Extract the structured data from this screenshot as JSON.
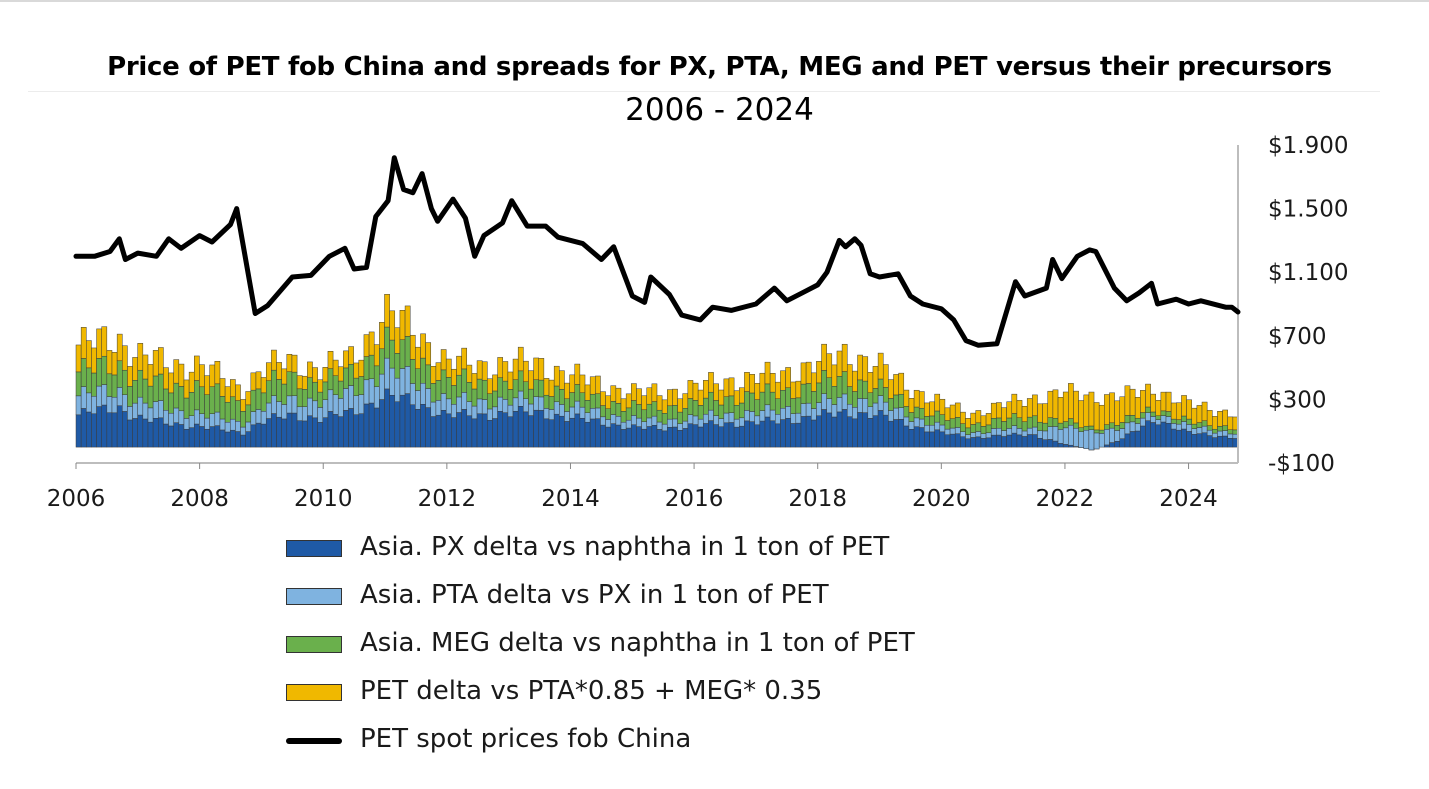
{
  "chart_data": {
    "type": "bar",
    "title": "Price of PET fob China and spreads for PX, PTA, MEG and PET versus their precursors",
    "subtitle": "2006 - 2024",
    "xlabel": "",
    "ylabel": "",
    "ylim": [
      -100,
      1900
    ],
    "x_range": [
      2006,
      2024.8
    ],
    "y_ticks": [
      -100,
      300,
      700,
      1100,
      1500,
      1900
    ],
    "y_tick_labels": [
      "-$100",
      "$300",
      "$700",
      "$1.100",
      "$1.500",
      "$1.900"
    ],
    "x_ticks": [
      2006,
      2008,
      2010,
      2012,
      2014,
      2016,
      2018,
      2020,
      2022,
      2024
    ],
    "x_tick_labels": [
      "2006",
      "2008",
      "2010",
      "2012",
      "2014",
      "2016",
      "2018",
      "2020",
      "2022",
      "2024"
    ],
    "grid": false,
    "legend_placement": "bottom",
    "colors": {
      "px": "#1f5aa6",
      "pta": "#7fb3e0",
      "meg": "#6ab04c",
      "pet": "#f0b800",
      "line": "#000000",
      "bar_outline": "#3a3a3a"
    },
    "stacked_series_keyframes": {
      "years": [
        2006,
        2006.7,
        2007,
        2007.5,
        2008,
        2008.7,
        2009,
        2009.5,
        2010,
        2010.5,
        2011,
        2011.5,
        2012,
        2012.5,
        2013,
        2013.5,
        2014,
        2014.5,
        2015,
        2015.5,
        2016,
        2016.5,
        2017,
        2017.5,
        2018,
        2018.5,
        2019,
        2019.5,
        2020,
        2020.5,
        2021,
        2021.5,
        2022,
        2022.5,
        2023,
        2023.5,
        2024,
        2024.8
      ],
      "px": [
        200,
        250,
        180,
        150,
        130,
        90,
        160,
        200,
        180,
        220,
        320,
        280,
        200,
        200,
        210,
        220,
        180,
        160,
        120,
        120,
        130,
        150,
        150,
        170,
        190,
        220,
        200,
        140,
        90,
        60,
        70,
        80,
        20,
        -20,
        60,
        180,
        90,
        60
      ],
      "pta": [
        120,
        110,
        100,
        90,
        80,
        60,
        90,
        100,
        110,
        130,
        170,
        140,
        90,
        90,
        80,
        80,
        70,
        60,
        50,
        50,
        50,
        60,
        60,
        70,
        80,
        90,
        80,
        60,
        40,
        30,
        40,
        40,
        100,
        120,
        60,
        40,
        40,
        30
      ],
      "meg": [
        150,
        160,
        150,
        140,
        170,
        120,
        130,
        140,
        110,
        120,
        170,
        160,
        130,
        120,
        110,
        100,
        90,
        80,
        80,
        80,
        90,
        100,
        110,
        110,
        120,
        130,
        90,
        70,
        60,
        50,
        60,
        70,
        40,
        20,
        40,
        30,
        30,
        30
      ],
      "pet": [
        170,
        160,
        150,
        140,
        140,
        90,
        110,
        100,
        90,
        100,
        180,
        160,
        110,
        110,
        120,
        130,
        110,
        100,
        90,
        100,
        100,
        110,
        110,
        120,
        130,
        160,
        140,
        110,
        90,
        70,
        90,
        120,
        180,
        200,
        160,
        120,
        110,
        90
      ]
    },
    "series": [
      {
        "name": "PET spot prices fob China",
        "type": "line",
        "x": [
          2006,
          2006.3,
          2006.55,
          2006.7,
          2006.8,
          2007,
          2007.3,
          2007.5,
          2007.7,
          2008,
          2008.2,
          2008.5,
          2008.6,
          2008.9,
          2009.1,
          2009.5,
          2009.8,
          2010.1,
          2010.35,
          2010.5,
          2010.7,
          2010.85,
          2011.05,
          2011.15,
          2011.3,
          2011.45,
          2011.6,
          2011.75,
          2011.85,
          2012.1,
          2012.3,
          2012.45,
          2012.6,
          2012.9,
          2013.05,
          2013.3,
          2013.6,
          2013.8,
          2014.2,
          2014.5,
          2014.7,
          2015.0,
          2015.2,
          2015.3,
          2015.6,
          2015.8,
          2016.1,
          2016.3,
          2016.6,
          2017.0,
          2017.3,
          2017.5,
          2017.8,
          2018.0,
          2018.15,
          2018.35,
          2018.45,
          2018.6,
          2018.7,
          2018.85,
          2019.0,
          2019.3,
          2019.5,
          2019.7,
          2020.0,
          2020.2,
          2020.4,
          2020.6,
          2020.9,
          2021.0,
          2021.2,
          2021.35,
          2021.7,
          2021.8,
          2021.95,
          2022.2,
          2022.4,
          2022.5,
          2022.8,
          2023.0,
          2023.2,
          2023.4,
          2023.5,
          2023.8,
          2024.0,
          2024.2,
          2024.6,
          2024.7,
          2024.8
        ],
        "y": [
          1200,
          1200,
          1230,
          1310,
          1180,
          1220,
          1200,
          1310,
          1250,
          1330,
          1290,
          1400,
          1500,
          840,
          890,
          1070,
          1080,
          1200,
          1250,
          1120,
          1130,
          1450,
          1550,
          1820,
          1620,
          1600,
          1720,
          1500,
          1420,
          1560,
          1440,
          1200,
          1330,
          1410,
          1550,
          1390,
          1390,
          1320,
          1280,
          1180,
          1260,
          950,
          910,
          1070,
          960,
          830,
          800,
          880,
          860,
          900,
          1000,
          920,
          980,
          1020,
          1100,
          1300,
          1260,
          1310,
          1270,
          1090,
          1070,
          1090,
          950,
          900,
          870,
          800,
          670,
          640,
          650,
          780,
          1040,
          950,
          1000,
          1180,
          1060,
          1200,
          1240,
          1230,
          1000,
          920,
          970,
          1030,
          900,
          930,
          900,
          920,
          880,
          880,
          850
        ]
      },
      {
        "name": "Asia. PX delta vs naphtha in 1 ton of PET",
        "type": "stacked-bar",
        "key": "px"
      },
      {
        "name": "Asia. PTA delta vs PX in 1 ton of PET",
        "type": "stacked-bar",
        "key": "pta"
      },
      {
        "name": "Asia. MEG delta vs naphtha in 1 ton of PET",
        "type": "stacked-bar",
        "key": "meg"
      },
      {
        "name": "PET delta vs PTA*0.85 + MEG* 0.35",
        "type": "stacked-bar",
        "key": "pet"
      }
    ],
    "legend": [
      {
        "label": "Asia. PX delta vs naphtha in 1 ton of PET",
        "color": "#1f5aa6",
        "kind": "box"
      },
      {
        "label": "Asia. PTA delta vs PX in 1 ton of PET",
        "color": "#7fb3e0",
        "kind": "box"
      },
      {
        "label": "Asia. MEG delta vs naphtha in 1 ton of PET",
        "color": "#6ab04c",
        "kind": "box"
      },
      {
        "label": "PET delta vs PTA*0.85 + MEG* 0.35",
        "color": "#f0b800",
        "kind": "box"
      },
      {
        "label": "PET spot prices fob China",
        "color": "#000000",
        "kind": "line"
      }
    ]
  }
}
